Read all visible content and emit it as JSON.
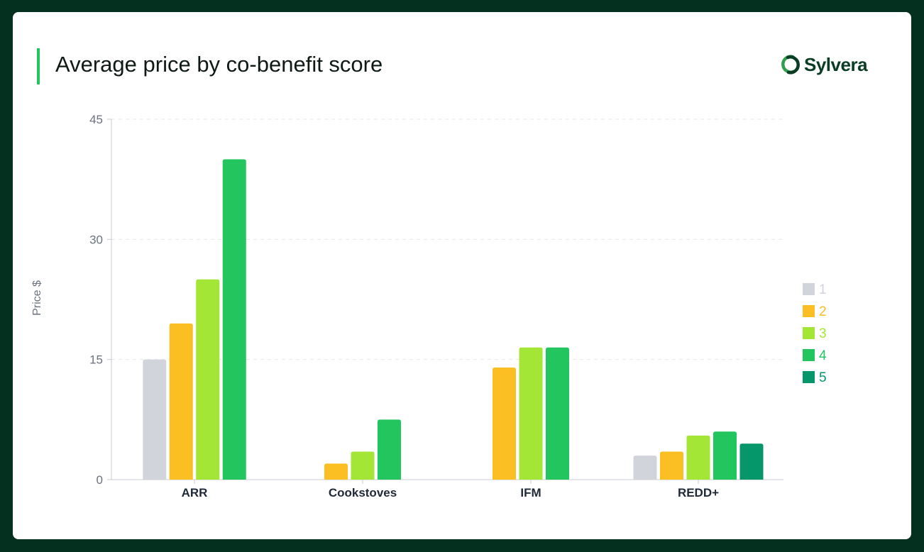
{
  "title": "Average price by co-benefit score",
  "brand": {
    "name": "Sylvera",
    "icon": "sylvera-logo-icon"
  },
  "colors": {
    "frame": "#03301f",
    "accent": "#22c55e",
    "axis_text": "#6b7280",
    "category_text": "#1f2937",
    "grid": "#e5e7eb"
  },
  "chart_data": {
    "type": "bar",
    "title": "Average price by co-benefit score",
    "xlabel": "",
    "ylabel": "Price $",
    "ylim": [
      0,
      45
    ],
    "yticks": [
      0,
      15,
      30,
      45
    ],
    "grid": true,
    "legend": "right",
    "categories": [
      "ARR",
      "Cookstoves",
      "IFM",
      "REDD+"
    ],
    "series": [
      {
        "name": "1",
        "color": "#d1d5db",
        "values": [
          15,
          null,
          null,
          3
        ]
      },
      {
        "name": "2",
        "color": "#fbbf24",
        "values": [
          19.5,
          2,
          14,
          3.5
        ]
      },
      {
        "name": "3",
        "color": "#a3e635",
        "values": [
          25,
          3.5,
          16.5,
          5.5
        ]
      },
      {
        "name": "4",
        "color": "#22c55e",
        "values": [
          40,
          7.5,
          16.5,
          6
        ]
      },
      {
        "name": "5",
        "color": "#059669",
        "values": [
          null,
          null,
          null,
          4.5
        ]
      }
    ]
  }
}
